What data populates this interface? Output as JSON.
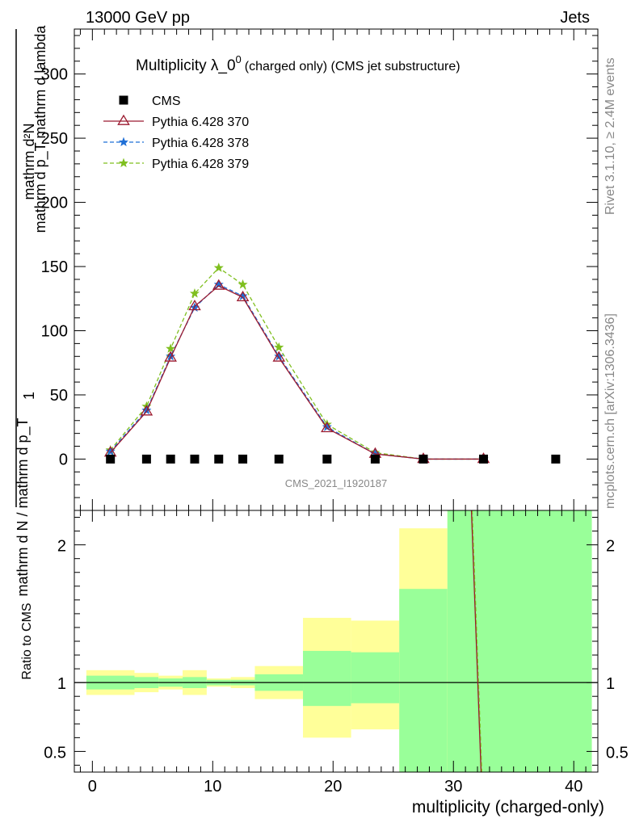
{
  "header": {
    "left": "13000 GeV pp",
    "right": "Jets"
  },
  "side_labels": {
    "rivet": "Rivet 3.1.10, ≥ 2.4M events",
    "mcplots": "mcplots.cern.ch [arXiv:1306.3436]"
  },
  "colors": {
    "cms": "#000000",
    "p370": "#9b1b30",
    "p378": "#1f6fd6",
    "p379": "#7fbf1f",
    "band_inner": "#99ff99",
    "band_outer": "#ffff99"
  },
  "chart_data": [
    {
      "type": "line",
      "title_main": "Multiplicity λ_0",
      "title_sup": "0",
      "title_sub": "(charged only) (CMS jet substructure)",
      "ylabel_num": "mathrm d²N",
      "ylabel_den": "mathrm d p_T mathrm d lambda",
      "ylabel_pre": "1",
      "ylabel_pre_den": "mathrm d N / mathrm d p_T",
      "watermark": "CMS_2021_I1920187",
      "ylim": [
        -40,
        335
      ],
      "xlim": [
        -1.5,
        42
      ],
      "yticks": [
        0,
        50,
        100,
        150,
        200,
        250,
        300
      ],
      "legend_position": "top-left",
      "series": [
        {
          "name": "CMS",
          "key": "cms",
          "marker": "square",
          "x": [
            1.5,
            4.5,
            6.5,
            8.5,
            10.5,
            12.5,
            15.5,
            19.5,
            23.5,
            27.5,
            32.5,
            38.5
          ],
          "y": [
            0,
            0,
            0,
            0,
            0,
            0,
            0,
            0,
            0,
            0,
            0,
            0
          ]
        },
        {
          "name": "Pythia 6.428 370",
          "key": "p370",
          "marker": "triangle",
          "x": [
            1.5,
            4.5,
            6.5,
            8.5,
            10.5,
            12.5,
            15.5,
            19.5,
            23.5,
            27.5,
            32.5
          ],
          "y": [
            5,
            37,
            79,
            119,
            135,
            126,
            79,
            24,
            4,
            0,
            0
          ]
        },
        {
          "name": "Pythia 6.428 378",
          "key": "p378",
          "marker": "star",
          "x": [
            1.5,
            4.5,
            6.5,
            8.5,
            10.5,
            12.5,
            15.5,
            19.5,
            23.5,
            27.5,
            32.5
          ],
          "y": [
            6,
            38,
            80,
            118,
            136,
            127,
            80,
            25,
            4,
            0,
            0
          ]
        },
        {
          "name": "Pythia 6.428 379",
          "key": "p379",
          "marker": "star",
          "x": [
            1.5,
            4.5,
            6.5,
            8.5,
            10.5,
            12.5,
            15.5,
            19.5,
            23.5,
            27.5,
            32.5
          ],
          "y": [
            7,
            41,
            86,
            129,
            149,
            136,
            87,
            27,
            5,
            0,
            0
          ]
        }
      ]
    },
    {
      "type": "line",
      "ylabel": "Ratio to CMS",
      "xlabel": "multiplicity (charged-only)",
      "xlim": [
        -1.5,
        42
      ],
      "ylim": [
        0.35,
        2.25
      ],
      "xticks": [
        0,
        10,
        20,
        30,
        40
      ],
      "yticks": [
        0.5,
        1,
        2
      ],
      "ratio_bins": [
        {
          "x0": -0.5,
          "x1": 3.5,
          "in_lo": 0.95,
          "in_hi": 1.05,
          "out_lo": 0.91,
          "out_hi": 1.09
        },
        {
          "x0": 3.5,
          "x1": 5.5,
          "in_lo": 0.96,
          "in_hi": 1.04,
          "out_lo": 0.93,
          "out_hi": 1.07
        },
        {
          "x0": 5.5,
          "x1": 7.5,
          "in_lo": 0.97,
          "in_hi": 1.03,
          "out_lo": 0.95,
          "out_hi": 1.05
        },
        {
          "x0": 7.5,
          "x1": 9.5,
          "in_lo": 0.96,
          "in_hi": 1.04,
          "out_lo": 0.91,
          "out_hi": 1.09
        },
        {
          "x0": 9.5,
          "x1": 11.5,
          "in_lo": 0.98,
          "in_hi": 1.02,
          "out_lo": 0.97,
          "out_hi": 1.03
        },
        {
          "x0": 11.5,
          "x1": 13.5,
          "in_lo": 0.98,
          "in_hi": 1.02,
          "out_lo": 0.96,
          "out_hi": 1.04
        },
        {
          "x0": 13.5,
          "x1": 17.5,
          "in_lo": 0.94,
          "in_hi": 1.06,
          "out_lo": 0.88,
          "out_hi": 1.12
        },
        {
          "x0": 17.5,
          "x1": 21.5,
          "in_lo": 0.83,
          "in_hi": 1.23,
          "out_lo": 0.6,
          "out_hi": 1.47
        },
        {
          "x0": 21.5,
          "x1": 25.5,
          "in_lo": 0.85,
          "in_hi": 1.22,
          "out_lo": 0.66,
          "out_hi": 1.45
        },
        {
          "x0": 25.5,
          "x1": 29.5,
          "in_lo": 0.35,
          "in_hi": 1.68,
          "out_lo": 0.35,
          "out_hi": 2.12
        },
        {
          "x0": 29.5,
          "x1": 41.5,
          "in_lo": 0.35,
          "in_hi": 2.25,
          "out_lo": 0.35,
          "out_hi": 2.25
        }
      ],
      "ratio_line": {
        "x": [
          31.5,
          32.3
        ],
        "y": [
          2.25,
          0.35
        ]
      }
    }
  ]
}
